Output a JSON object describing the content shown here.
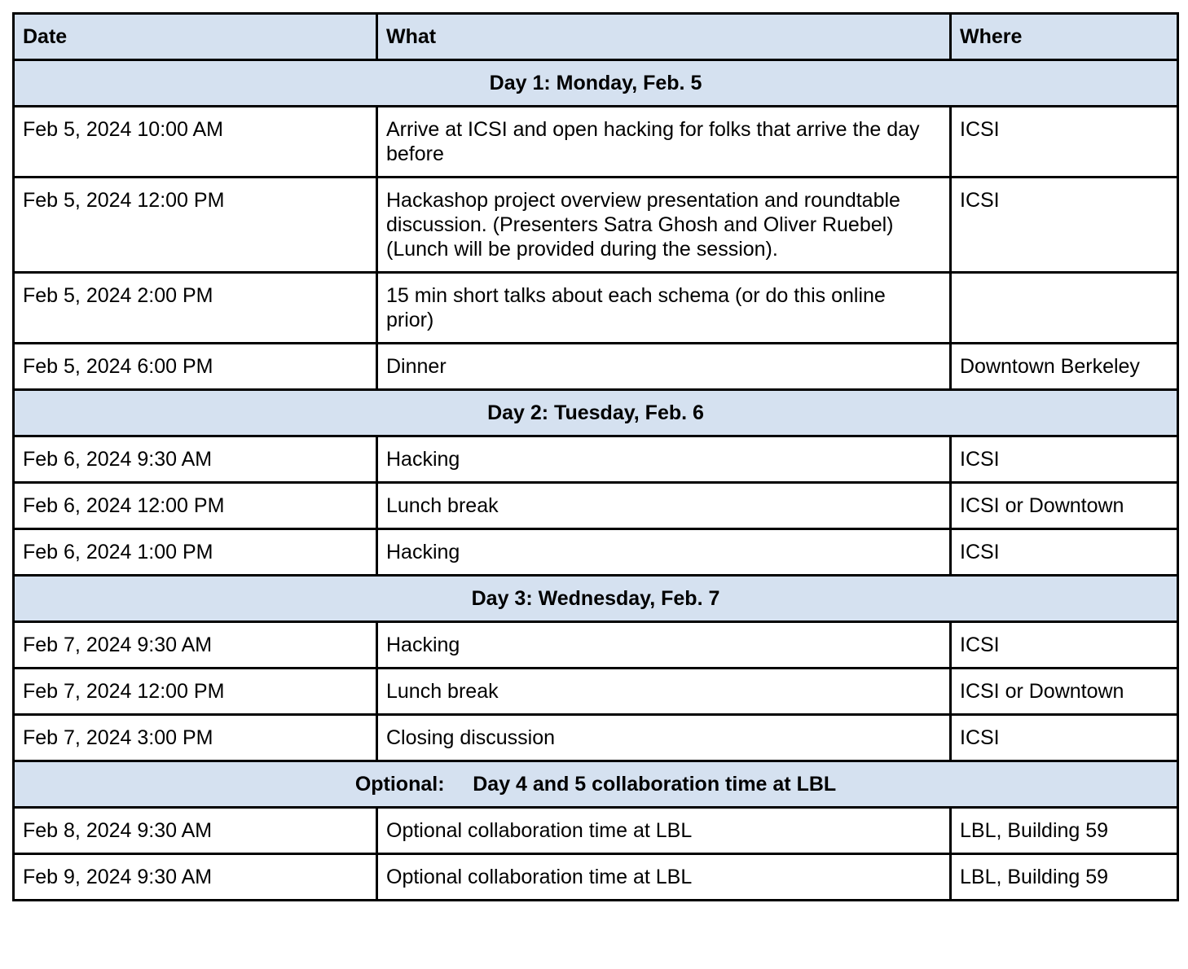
{
  "colors": {
    "header_bg": "#d5e1f0",
    "section_bg": "#d5e1f0",
    "border": "#000000",
    "text": "#000000",
    "page_bg": "#ffffff"
  },
  "table": {
    "columns": [
      "Date",
      "What",
      "Where"
    ],
    "sections": [
      {
        "title": "Day 1: Monday, Feb. 5",
        "rows": [
          {
            "date": "Feb 5, 2024 10:00 AM",
            "what": "Arrive at ICSI and open hacking for folks that arrive the day before",
            "where": "ICSI"
          },
          {
            "date": "Feb 5, 2024 12:00 PM",
            "what": "Hackashop project overview presentation and roundtable discussion. (Presenters Satra Ghosh and Oliver Ruebel) (Lunch will be provided during the session).",
            "where": "ICSI"
          },
          {
            "date": "Feb 5, 2024 2:00 PM",
            "what": "15 min short talks about each schema (or do this online prior)",
            "where": ""
          },
          {
            "date": "Feb 5, 2024 6:00 PM",
            "what": "Dinner",
            "where": "Downtown Berkeley"
          }
        ]
      },
      {
        "title": "Day 2: Tuesday, Feb. 6",
        "rows": [
          {
            "date": "Feb 6, 2024 9:30 AM",
            "what": "Hacking",
            "where": "ICSI"
          },
          {
            "date": "Feb 6, 2024 12:00 PM",
            "what": "Lunch break",
            "where": "ICSI or Downtown"
          },
          {
            "date": "Feb 6, 2024 1:00 PM",
            "what": "Hacking",
            "where": "ICSI"
          }
        ]
      },
      {
        "title": "Day 3: Wednesday, Feb. 7",
        "rows": [
          {
            "date": "Feb 7, 2024 9:30 AM",
            "what": "Hacking",
            "where": "ICSI"
          },
          {
            "date": "Feb 7, 2024 12:00 PM",
            "what": "Lunch break",
            "where": "ICSI or Downtown"
          },
          {
            "date": "Feb 7, 2024 3:00 PM",
            "what": "Closing discussion",
            "where": "ICSI"
          }
        ]
      },
      {
        "title": "Optional:     Day 4 and 5 collaboration time at LBL",
        "rows": [
          {
            "date": "Feb 8, 2024 9:30 AM",
            "what": "Optional collaboration time at LBL",
            "where": "LBL, Building 59"
          },
          {
            "date": "Feb 9, 2024 9:30 AM",
            "what": "Optional collaboration time at LBL",
            "where": "LBL, Building 59"
          }
        ]
      }
    ]
  }
}
